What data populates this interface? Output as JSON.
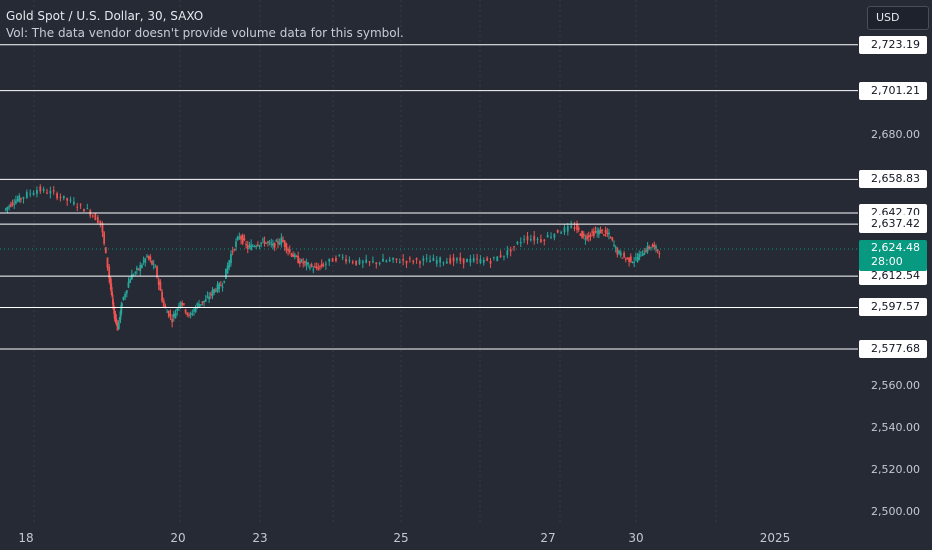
{
  "header": {
    "title": "Gold Spot / U.S. Dollar, 30, SAXO",
    "volume_note": "Vol: The data vendor doesn't provide volume data for this symbol."
  },
  "currency": "USD",
  "colors": {
    "background": "#262a35",
    "up": "#26a69a",
    "down": "#ef5350",
    "horizontal_line": "#ffffff",
    "current_price": "#089981",
    "grid": "#363a45"
  },
  "current_price": {
    "value": "2,624.48",
    "countdown": "28:00"
  },
  "chart_data": {
    "type": "line",
    "title": "Gold Spot / U.S. Dollar, 30, SAXO",
    "xlabel": "",
    "ylabel": "",
    "ylim": [
      2495,
      2735
    ],
    "y_ticks": [
      "2,680.00",
      "2,560.00",
      "2,540.00",
      "2,520.00",
      "2,500.00"
    ],
    "x_ticks": [
      "18",
      "20",
      "23",
      "25",
      "27",
      "30",
      "2025"
    ],
    "horizontal_levels": [
      "2,723.19",
      "2,701.21",
      "2,658.83",
      "2,642.70",
      "2,637.42",
      "2,612.54",
      "2,597.57",
      "2,577.68"
    ],
    "x_range": [
      0,
      100
    ],
    "series": [
      {
        "x": [
          0,
          1,
          2,
          4,
          6,
          8,
          10,
          11.5,
          12.5,
          13,
          13.5,
          14,
          15,
          16,
          17,
          18,
          19,
          20,
          21,
          22,
          23,
          24,
          25,
          26,
          27,
          28,
          29,
          30,
          31,
          32,
          33,
          34,
          35,
          36,
          37,
          38,
          40,
          42,
          44,
          46,
          48,
          50,
          52,
          54,
          56,
          58,
          60,
          62,
          64,
          66,
          68,
          69,
          70,
          71,
          72,
          73,
          74,
          75,
          76,
          77,
          78
        ],
        "y": [
          2644,
          2648,
          2650,
          2654,
          2652,
          2648,
          2644,
          2638,
          2612,
          2595,
          2588,
          2600,
          2612,
          2616,
          2622,
          2616,
          2598,
          2592,
          2601,
          2593,
          2599,
          2601,
          2606,
          2609,
          2623,
          2632,
          2626,
          2628,
          2629,
          2627,
          2630,
          2624,
          2620,
          2618,
          2616,
          2618,
          2622,
          2619,
          2619,
          2620,
          2620,
          2620,
          2620,
          2620,
          2620,
          2620,
          2624,
          2631,
          2630,
          2634,
          2636,
          2631,
          2633,
          2634,
          2632,
          2624,
          2621,
          2620,
          2624,
          2627,
          2624.48
        ]
      }
    ]
  }
}
